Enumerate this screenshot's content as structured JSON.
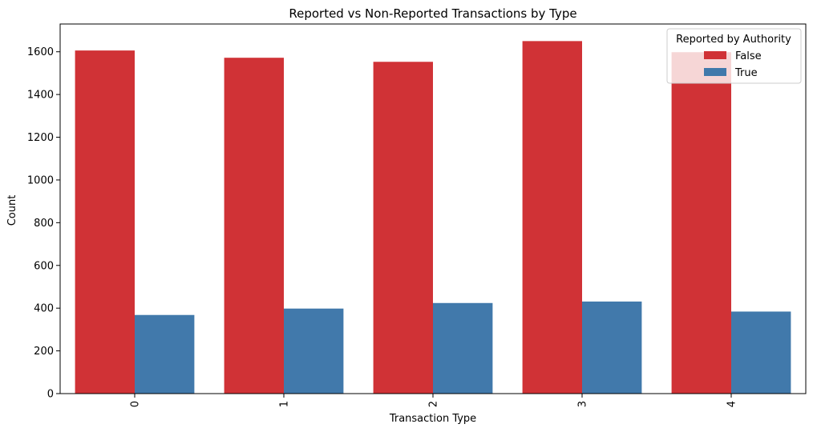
{
  "chart_data": {
    "type": "bar",
    "title": "Reported vs Non-Reported Transactions by Type",
    "xlabel": "Transaction Type",
    "ylabel": "Count",
    "categories": [
      "0",
      "1",
      "2",
      "3",
      "4"
    ],
    "ylim": [
      0,
      1730
    ],
    "yticks": [
      0,
      200,
      400,
      600,
      800,
      1000,
      1200,
      1400,
      1600
    ],
    "x_tick_rotation": "vertical",
    "legend": {
      "title": "Reported by Authority",
      "position": "top-right"
    },
    "grid": false,
    "series": [
      {
        "name": "False",
        "color": "#d03236",
        "values": [
          1606,
          1572,
          1553,
          1650,
          1598
        ]
      },
      {
        "name": "True",
        "color": "#4179ab",
        "values": [
          368,
          398,
          424,
          431,
          384
        ]
      }
    ]
  }
}
